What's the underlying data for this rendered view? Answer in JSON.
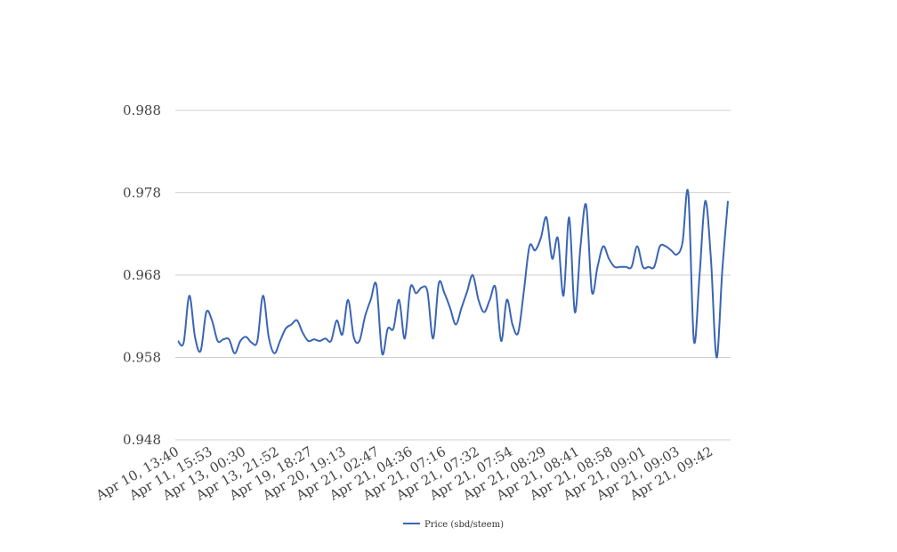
{
  "chart_data": {
    "type": "line",
    "title": "",
    "xlabel": "",
    "ylabel": "",
    "ylim": [
      0.948,
      0.988
    ],
    "yticks": [
      "0.948",
      "0.958",
      "0.968",
      "0.978",
      "0.988"
    ],
    "grid": true,
    "legend_position": "bottom",
    "x_tick_labels": [
      "Apr 10, 13:40",
      "Apr 11, 15:53",
      "Apr 13, 00:30",
      "Apr 13, 21:52",
      "Apr 19, 18:27",
      "Apr 20, 19:13",
      "Apr 21, 02:47",
      "Apr 21, 04:36",
      "Apr 21, 07:16",
      "Apr 21, 07:32",
      "Apr 21, 07:54",
      "Apr 21, 08:29",
      "Apr 21, 08:41",
      "Apr 21, 08:58",
      "Apr 21, 09:01",
      "Apr 21, 09:03",
      "Apr 21, 09:42"
    ],
    "series": [
      {
        "name": "Price (sbd/steem)",
        "color": "#3a65b4",
        "values": [
          0.96,
          0.9598,
          0.9655,
          0.9605,
          0.9588,
          0.9635,
          0.9625,
          0.96,
          0.9602,
          0.9602,
          0.9585,
          0.96,
          0.9605,
          0.9598,
          0.96,
          0.9655,
          0.9605,
          0.9585,
          0.96,
          0.9615,
          0.962,
          0.9625,
          0.961,
          0.96,
          0.9602,
          0.96,
          0.9603,
          0.96,
          0.9625,
          0.9608,
          0.965,
          0.9605,
          0.96,
          0.963,
          0.965,
          0.9668,
          0.9585,
          0.9615,
          0.9615,
          0.965,
          0.9603,
          0.9665,
          0.9658,
          0.9665,
          0.966,
          0.9603,
          0.967,
          0.9658,
          0.964,
          0.962,
          0.964,
          0.966,
          0.968,
          0.965,
          0.9635,
          0.965,
          0.9665,
          0.96,
          0.965,
          0.962,
          0.961,
          0.966,
          0.9715,
          0.971,
          0.9725,
          0.975,
          0.97,
          0.9725,
          0.9655,
          0.975,
          0.9635,
          0.9715,
          0.9765,
          0.966,
          0.969,
          0.9715,
          0.97,
          0.969,
          0.969,
          0.969,
          0.969,
          0.9715,
          0.969,
          0.969,
          0.969,
          0.9715,
          0.9715,
          0.971,
          0.9705,
          0.972,
          0.978,
          0.96,
          0.968,
          0.977,
          0.97,
          0.958,
          0.9685,
          0.977
        ]
      }
    ]
  }
}
